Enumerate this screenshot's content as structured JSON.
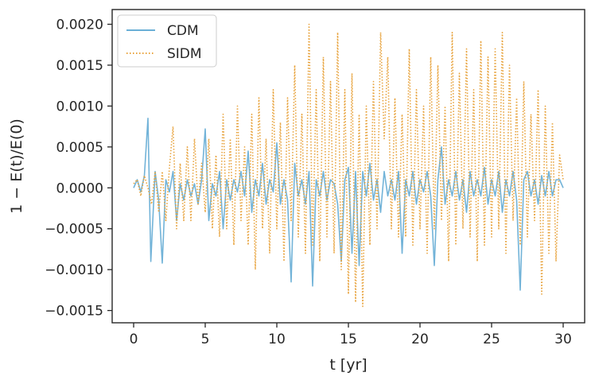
{
  "chart_data": {
    "type": "line",
    "title": "",
    "xlabel": "t [yr]",
    "ylabel": "1 − E(t)/E(0)",
    "xlim": [
      -1.5,
      31.5
    ],
    "ylim": [
      -0.00165,
      0.00218
    ],
    "x_ticks": [
      0,
      5,
      10,
      15,
      20,
      25,
      30
    ],
    "x_tick_labels": [
      "0",
      "5",
      "10",
      "15",
      "20",
      "25",
      "30"
    ],
    "y_ticks": [
      0.002,
      0.0015,
      0.001,
      0.0005,
      0.0,
      -0.0005,
      -0.001,
      -0.0015
    ],
    "y_tick_labels": [
      "0.0020",
      "0.0015",
      "0.0010",
      "0.0005",
      "0.0000",
      "−0.0005",
      "−0.0010",
      "−0.0015"
    ],
    "grid": false,
    "legend_position": "top-left",
    "series": [
      {
        "name": "CDM",
        "color": "#6aafd6",
        "style": "solid",
        "x": [
          0,
          0.25,
          0.5,
          0.75,
          1.0,
          1.2,
          1.5,
          1.75,
          2.0,
          2.25,
          2.5,
          2.75,
          3.0,
          3.25,
          3.5,
          3.75,
          4.0,
          4.25,
          4.5,
          4.75,
          5.0,
          5.25,
          5.5,
          5.75,
          6.0,
          6.25,
          6.5,
          6.75,
          7.0,
          7.25,
          7.5,
          7.75,
          8.0,
          8.25,
          8.5,
          8.75,
          9.0,
          9.25,
          9.5,
          9.75,
          10.0,
          10.25,
          10.5,
          10.75,
          11.0,
          11.25,
          11.5,
          11.75,
          12.0,
          12.25,
          12.5,
          12.75,
          13.0,
          13.25,
          13.5,
          13.75,
          14.0,
          14.25,
          14.5,
          14.75,
          15.0,
          15.25,
          15.5,
          15.75,
          16.0,
          16.25,
          16.5,
          16.75,
          17.0,
          17.25,
          17.5,
          17.75,
          18.0,
          18.25,
          18.5,
          18.75,
          19.0,
          19.25,
          19.5,
          19.75,
          20.0,
          20.25,
          20.5,
          20.75,
          21.0,
          21.25,
          21.5,
          21.75,
          22.0,
          22.25,
          22.5,
          22.75,
          23.0,
          23.25,
          23.5,
          23.75,
          24.0,
          24.25,
          24.5,
          24.75,
          25.0,
          25.25,
          25.5,
          25.75,
          26.0,
          26.25,
          26.5,
          26.75,
          27.0,
          27.25,
          27.5,
          27.75,
          28.0,
          28.25,
          28.5,
          28.75,
          29.0,
          29.25,
          29.5,
          29.75,
          30.0
        ],
        "values": [
          0.0,
          0.0001,
          -5e-05,
          0.00015,
          0.00085,
          -0.0009,
          0.0002,
          -0.00015,
          -0.00092,
          0.0001,
          -5e-05,
          0.0002,
          -0.0004,
          5e-05,
          -0.00015,
          0.0001,
          -0.0001,
          5e-05,
          -0.0002,
          0.0001,
          0.00072,
          -0.0004,
          5e-05,
          -0.0001,
          0.0002,
          -0.0005,
          0.0001,
          -0.00015,
          0.0001,
          -5e-05,
          0.0002,
          -0.0001,
          0.00045,
          -0.0003,
          0.0001,
          -0.0001,
          0.0003,
          -0.0002,
          0.0001,
          -5e-05,
          0.00055,
          -0.0002,
          0.0001,
          -0.00015,
          -0.00115,
          0.0003,
          -0.0001,
          0.0001,
          -0.0002,
          0.0002,
          -0.0012,
          0.0001,
          -0.0001,
          0.0002,
          -0.00015,
          0.0001,
          5e-05,
          -0.0002,
          -0.0009,
          0.0001,
          0.00025,
          -0.0008,
          0.0002,
          -0.00095,
          0.0002,
          -0.0001,
          0.0003,
          -0.00015,
          0.0001,
          -0.0003,
          0.0002,
          -0.0001,
          0.0001,
          -0.00015,
          0.0002,
          -0.0008,
          0.0001,
          -0.0001,
          0.0002,
          -0.0002,
          0.0001,
          -5e-05,
          0.0002,
          -0.0001,
          -0.00095,
          0.0001,
          0.0005,
          -0.0002,
          0.0001,
          -0.0001,
          0.0002,
          -0.00015,
          0.0001,
          -0.0003,
          0.0002,
          -0.0001,
          0.0001,
          -0.0001,
          0.00025,
          -0.0002,
          0.0001,
          -0.0001,
          0.0002,
          -0.0003,
          0.0001,
          -0.0001,
          0.0002,
          -0.00015,
          -0.00125,
          0.0001,
          0.0002,
          -0.0001,
          0.0001,
          -0.0002,
          0.00015,
          -0.0001,
          0.0002,
          -0.0001,
          0.0001,
          0.0001,
          0.0
        ]
      },
      {
        "name": "SIDM",
        "color": "#e8a33d",
        "style": "dotted",
        "x": [
          0,
          0.25,
          0.5,
          0.75,
          1.0,
          1.25,
          1.5,
          1.75,
          2.0,
          2.25,
          2.5,
          2.75,
          3.0,
          3.25,
          3.5,
          3.75,
          4.0,
          4.25,
          4.5,
          4.75,
          5.0,
          5.25,
          5.5,
          5.75,
          6.0,
          6.25,
          6.5,
          6.75,
          7.0,
          7.25,
          7.5,
          7.75,
          8.0,
          8.25,
          8.5,
          8.75,
          9.0,
          9.25,
          9.5,
          9.75,
          10.0,
          10.25,
          10.5,
          10.75,
          11.0,
          11.25,
          11.5,
          11.75,
          12.0,
          12.25,
          12.5,
          12.75,
          13.0,
          13.25,
          13.5,
          13.75,
          14.0,
          14.25,
          14.5,
          14.75,
          15.0,
          15.25,
          15.5,
          15.75,
          16.0,
          16.25,
          16.5,
          16.75,
          17.0,
          17.25,
          17.5,
          17.75,
          18.0,
          18.25,
          18.5,
          18.75,
          19.0,
          19.25,
          19.5,
          19.75,
          20.0,
          20.25,
          20.5,
          20.75,
          21.0,
          21.25,
          21.5,
          21.75,
          22.0,
          22.25,
          22.5,
          22.75,
          23.0,
          23.25,
          23.5,
          23.75,
          24.0,
          24.25,
          24.5,
          24.75,
          25.0,
          25.25,
          25.5,
          25.75,
          26.0,
          26.25,
          26.5,
          26.75,
          27.0,
          27.25,
          27.5,
          27.75,
          28.0,
          28.25,
          28.5,
          28.75,
          29.0,
          29.25,
          29.5,
          29.75,
          30.0
        ],
        "values": [
          5e-05,
          0.0001,
          -0.0001,
          0.00015,
          0.0,
          -0.0002,
          0.0002,
          -0.0003,
          0.0002,
          -0.0004,
          0.00025,
          0.00075,
          -0.0005,
          0.0003,
          -0.0004,
          0.0005,
          -0.0004,
          0.0006,
          -0.0002,
          0.0003,
          -0.0003,
          0.0006,
          -0.0005,
          0.0004,
          -0.0006,
          0.0009,
          -0.0005,
          0.0006,
          -0.0007,
          0.001,
          -0.0004,
          0.0005,
          -0.0007,
          0.0009,
          -0.001,
          0.0011,
          -0.0005,
          0.0006,
          -0.0008,
          0.0012,
          -0.0005,
          0.0008,
          -0.0009,
          0.0011,
          -0.0004,
          0.0015,
          -0.0006,
          0.0009,
          -0.0008,
          0.002,
          -0.0007,
          0.0012,
          -0.0009,
          0.0016,
          -0.0006,
          0.0013,
          -0.0008,
          0.0019,
          -0.001,
          0.0012,
          -0.0013,
          0.0014,
          -0.0014,
          0.0009,
          -0.00145,
          0.001,
          -0.0007,
          0.0013,
          -0.0005,
          0.0019,
          0.0006,
          0.0016,
          -0.0005,
          0.0011,
          -0.0006,
          0.0009,
          -0.0006,
          0.0017,
          -0.0007,
          0.0012,
          -0.0005,
          0.001,
          -0.0008,
          0.0016,
          -0.0005,
          0.0015,
          -0.0004,
          0.001,
          -0.0009,
          0.0019,
          -0.0007,
          0.0014,
          -0.0005,
          0.0017,
          -0.0006,
          0.0012,
          -0.0009,
          0.0018,
          -0.0007,
          0.0016,
          -0.0006,
          0.0017,
          -0.0005,
          0.0019,
          -0.0008,
          0.0015,
          -0.0004,
          0.0011,
          -0.0007,
          0.0013,
          -0.0006,
          0.0009,
          -0.0004,
          0.0012,
          -0.0013,
          0.001,
          -0.0008,
          0.0008,
          -0.0009,
          0.0004,
          0.0001
        ]
      }
    ]
  }
}
